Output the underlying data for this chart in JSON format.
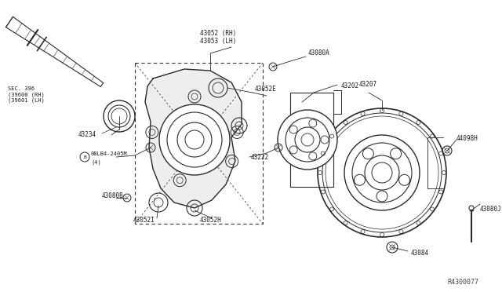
{
  "bg_color": "#ffffff",
  "line_color": "#2a2a2a",
  "fig_width": 6.4,
  "fig_height": 3.72,
  "dpi": 100,
  "ref_code": "R4300077",
  "labels": {
    "sec396": "SEC. 396\n(39600 (RH)\n(39601 (LH)",
    "43234": "43234",
    "bolt_b": "08LB4-2405M",
    "bolt_b2": "(4)",
    "43080b": "43080B",
    "43052rh": "43052 (RH)\n43053 (LH)",
    "43080a": "43080A",
    "43052e": "43052E",
    "43202": "43202",
    "43222": "43222",
    "43052h": "43052H",
    "43052i": "43052I",
    "43207": "43207",
    "44098h": "44098H",
    "43084": "43084",
    "43080j": "43080J"
  }
}
